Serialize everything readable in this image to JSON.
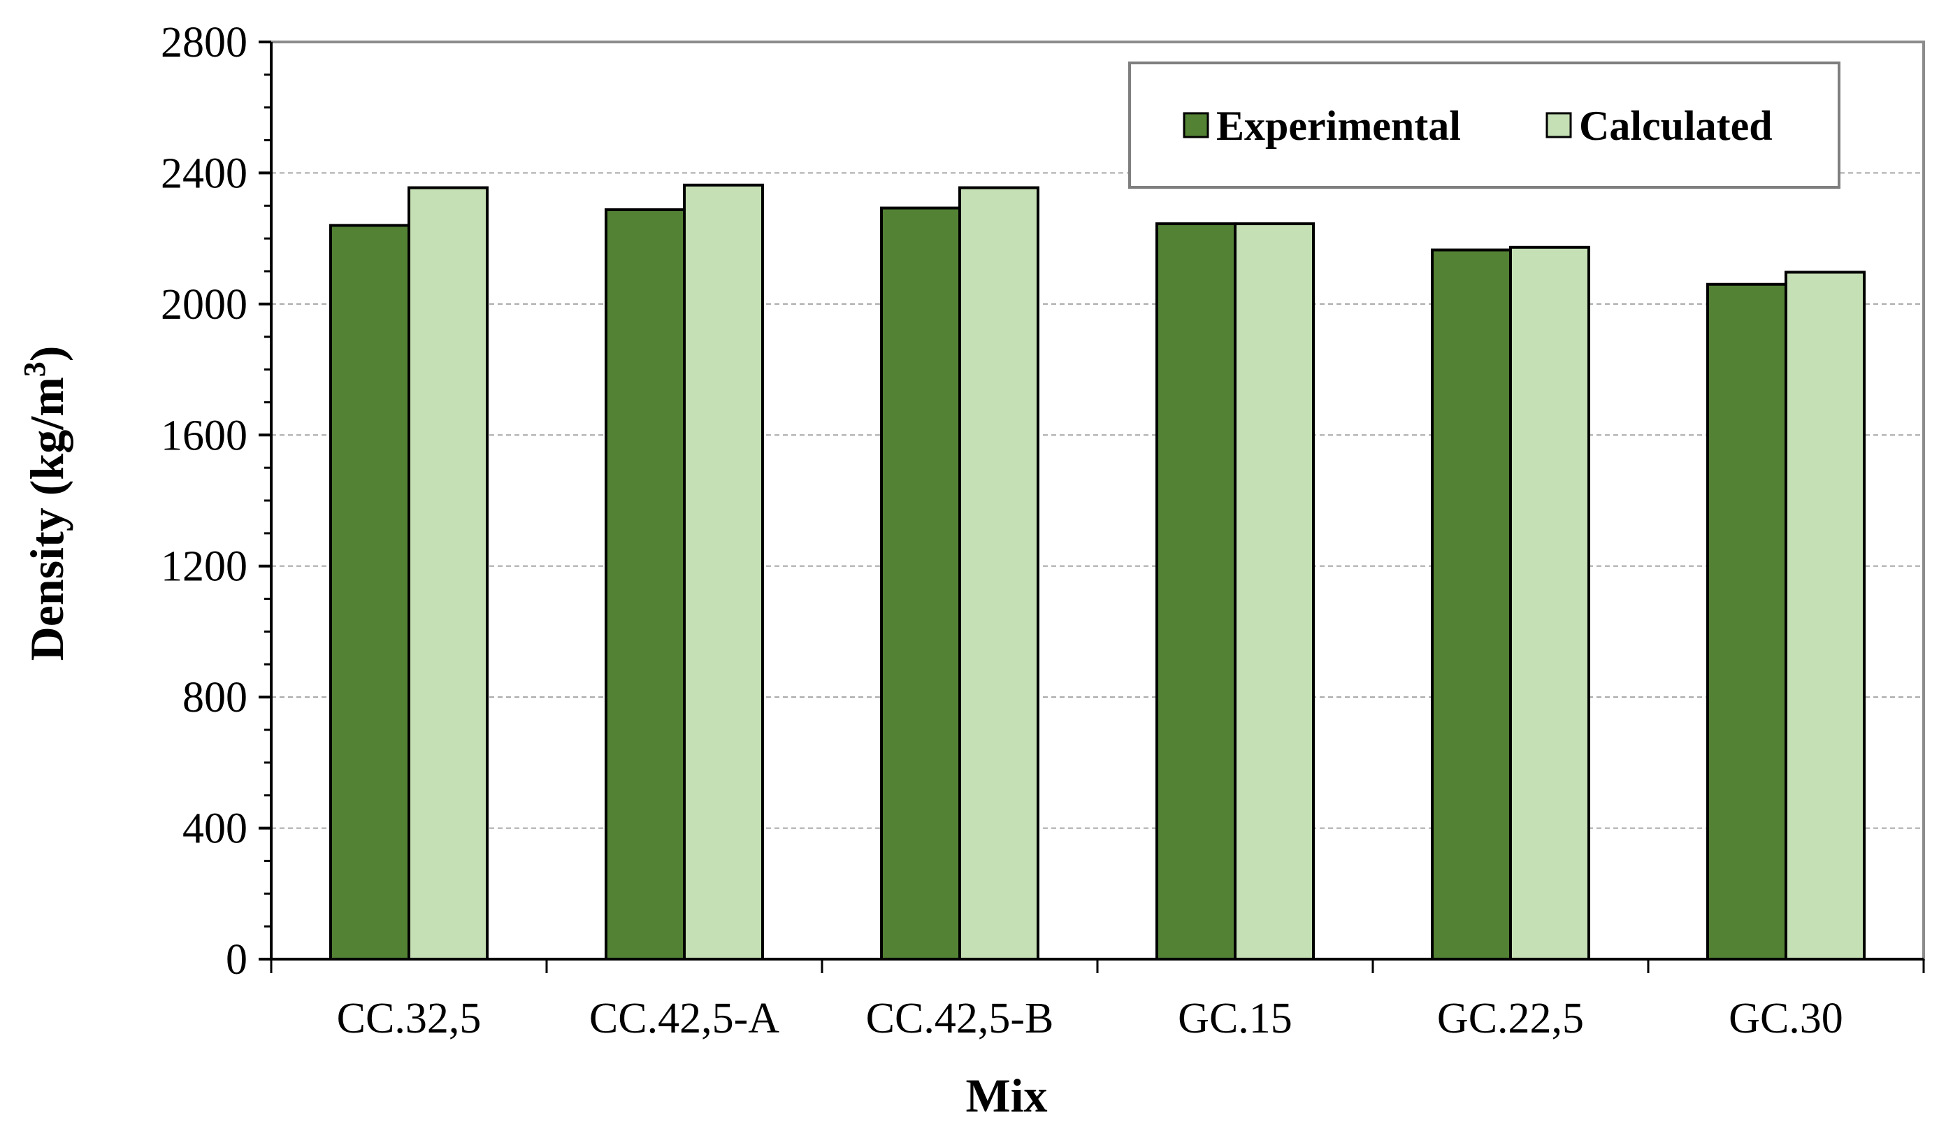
{
  "chart_data": {
    "type": "bar",
    "title": "",
    "xlabel": "Mix",
    "ylabel_main": "Density (kg/m",
    "ylabel_sup": "3",
    "ylabel_close": ")",
    "categories": [
      "CC.32,5",
      "CC.42,5-A",
      "CC.42,5-B",
      "GC.15",
      "GC.22,5",
      "GC.30"
    ],
    "series": [
      {
        "name": "Experimental",
        "color": "#548235",
        "values": [
          2240,
          2288,
          2293,
          2245,
          2165,
          2060
        ]
      },
      {
        "name": "Calculated",
        "color": "#c5e0b4",
        "values": [
          2355,
          2363,
          2355,
          2245,
          2173,
          2097
        ]
      }
    ],
    "ylim": [
      0,
      2800
    ],
    "yticks": [
      0,
      400,
      800,
      1200,
      1600,
      2000,
      2400,
      2800
    ],
    "ytick_labels": [
      "0",
      "400",
      "800",
      "1200",
      "1600",
      "2000",
      "2400",
      "2800"
    ],
    "grid": true,
    "legend_position": "top-right"
  }
}
